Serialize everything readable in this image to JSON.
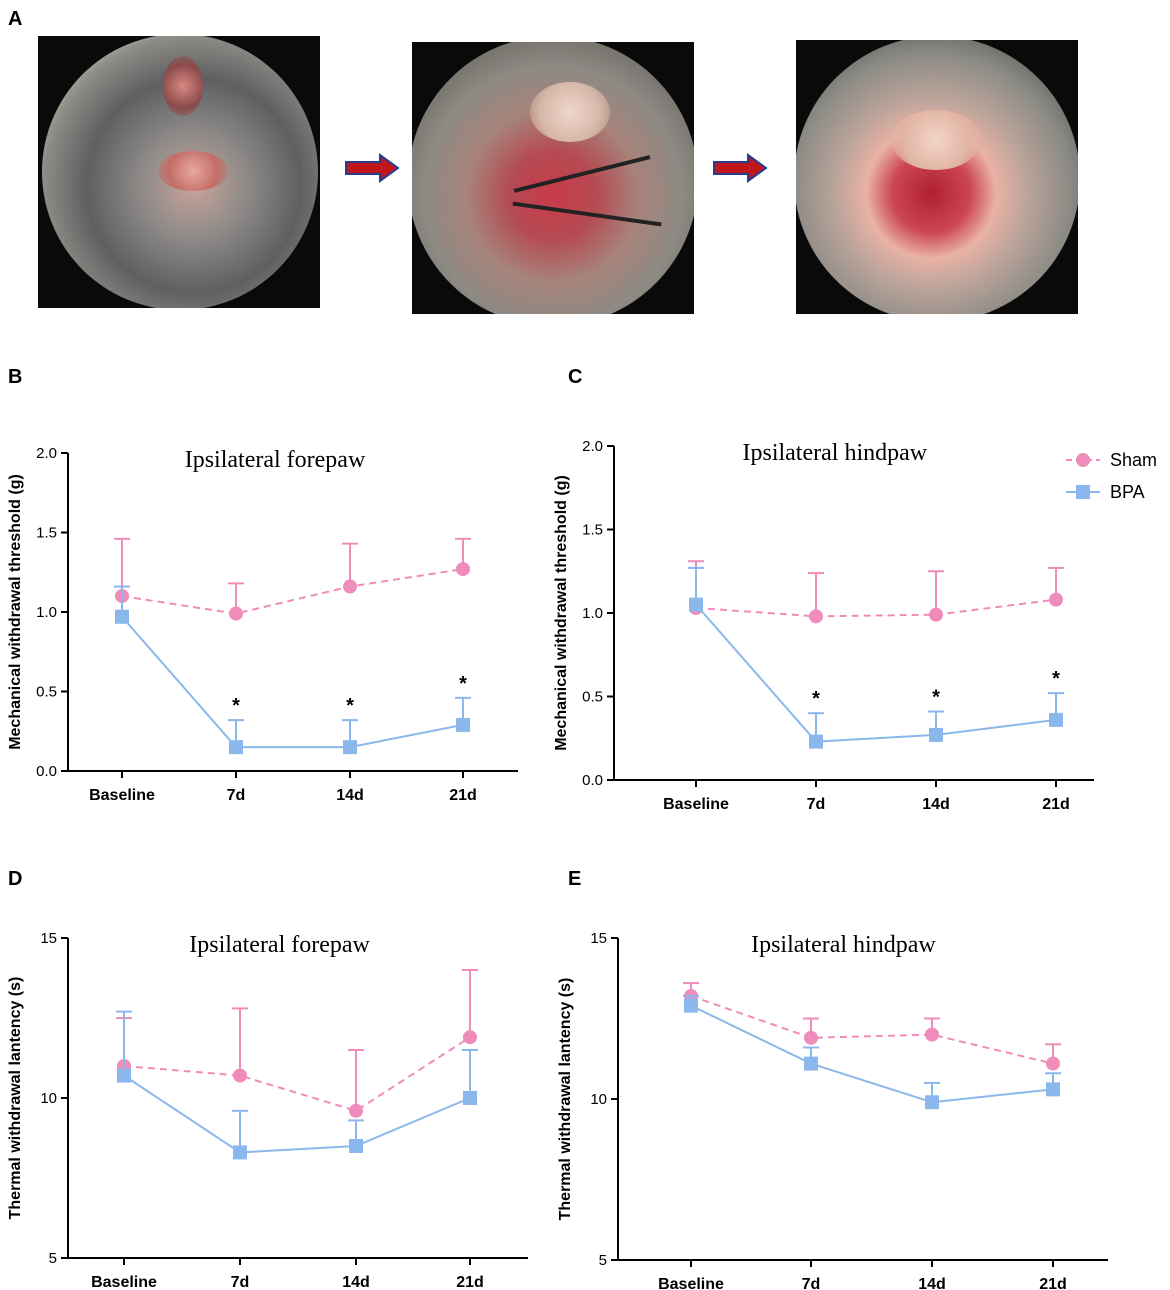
{
  "panels": {
    "a": "A",
    "b": "B",
    "c": "C",
    "d": "D",
    "e": "E"
  },
  "photos": [
    {
      "name": "mouse-photo-exposure",
      "caption_icon": "surgical-photo-icon"
    },
    {
      "name": "mouse-photo-ligation",
      "caption_icon": "surgical-photo-icon"
    },
    {
      "name": "mouse-photo-avulsion",
      "caption_icon": "surgical-photo-icon"
    }
  ],
  "colors": {
    "sham": "#f08cba",
    "bpa": "#8ab8ec",
    "arrow": "#c0161b",
    "arrow_border": "#2a3a8c"
  },
  "legend": {
    "sham": "Sham",
    "bpa": "BPA"
  },
  "chart_data": [
    {
      "id": "B",
      "type": "line",
      "title": "Ipsilateral forepaw",
      "xlabel": "",
      "ylabel": "Mechanical withdrawal threshold (g)",
      "categories": [
        "Baseline",
        "7d",
        "14d",
        "21d"
      ],
      "ylim": [
        0,
        2.0
      ],
      "yticks": [
        "0.0",
        "0.5",
        "1.0",
        "1.5",
        "2.0"
      ],
      "ytick_values": [
        0,
        0.5,
        1.0,
        1.5,
        2.0
      ],
      "series": [
        {
          "name": "Sham",
          "values": [
            1.1,
            0.99,
            1.16,
            1.27
          ],
          "err": [
            0.36,
            0.19,
            0.27,
            0.19
          ]
        },
        {
          "name": "BPA",
          "values": [
            0.97,
            0.15,
            0.15,
            0.29
          ],
          "err": [
            0.19,
            0.17,
            0.17,
            0.17
          ]
        }
      ],
      "annotations": [
        "",
        "*",
        "*",
        "*"
      ]
    },
    {
      "id": "C",
      "type": "line",
      "title": "Ipsilateral hindpaw",
      "xlabel": "",
      "ylabel": "Mechanical withdrawal threshold (g)",
      "categories": [
        "Baseline",
        "7d",
        "14d",
        "21d"
      ],
      "ylim": [
        0,
        2.0
      ],
      "yticks": [
        "0.0",
        "0.5",
        "1.0",
        "1.5",
        "2.0"
      ],
      "ytick_values": [
        0,
        0.5,
        1.0,
        1.5,
        2.0
      ],
      "series": [
        {
          "name": "Sham",
          "values": [
            1.03,
            0.98,
            0.99,
            1.08
          ],
          "err": [
            0.28,
            0.26,
            0.26,
            0.19
          ]
        },
        {
          "name": "BPA",
          "values": [
            1.05,
            0.23,
            0.27,
            0.36
          ],
          "err": [
            0.22,
            0.17,
            0.14,
            0.16
          ]
        }
      ],
      "annotations": [
        "",
        "*",
        "*",
        "*"
      ]
    },
    {
      "id": "D",
      "type": "line",
      "title": "Ipsilateral forepaw",
      "xlabel": "",
      "ylabel": "Thermal withdrawal lantency (s)",
      "categories": [
        "Baseline",
        "7d",
        "14d",
        "21d"
      ],
      "ylim": [
        5,
        15
      ],
      "yticks": [
        "5",
        "10",
        "15"
      ],
      "ytick_values": [
        5,
        10,
        15
      ],
      "series": [
        {
          "name": "Sham",
          "values": [
            11.0,
            10.7,
            9.6,
            11.9
          ],
          "err": [
            1.5,
            2.1,
            1.9,
            2.1
          ]
        },
        {
          "name": "BPA",
          "values": [
            10.7,
            8.3,
            8.5,
            10.0
          ],
          "err": [
            2.0,
            1.3,
            0.8,
            1.5
          ]
        }
      ],
      "annotations": [
        "",
        "",
        "",
        ""
      ]
    },
    {
      "id": "E",
      "type": "line",
      "title": "Ipsilateral hindpaw",
      "xlabel": "",
      "ylabel": "Thermal withdrawal lantency (s)",
      "categories": [
        "Baseline",
        "7d",
        "14d",
        "21d"
      ],
      "ylim": [
        5,
        15
      ],
      "yticks": [
        "5",
        "10",
        "15"
      ],
      "ytick_values": [
        5,
        10,
        15
      ],
      "series": [
        {
          "name": "Sham",
          "values": [
            13.2,
            11.9,
            12.0,
            11.1
          ],
          "err": [
            0.4,
            0.6,
            0.5,
            0.6
          ]
        },
        {
          "name": "BPA",
          "values": [
            12.9,
            11.1,
            9.9,
            10.3
          ],
          "err": [
            0.3,
            0.5,
            0.6,
            0.5
          ]
        }
      ],
      "annotations": [
        "",
        "",
        "",
        ""
      ]
    }
  ]
}
